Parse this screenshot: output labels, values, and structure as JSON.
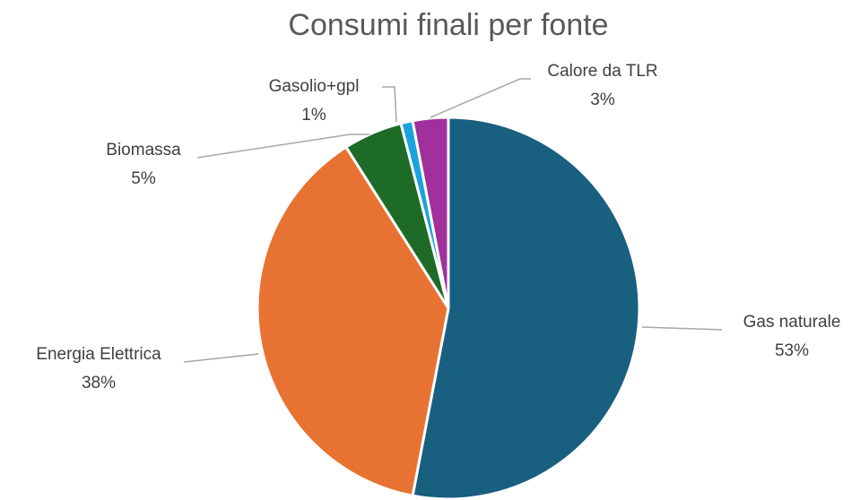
{
  "chart_data": {
    "type": "pie",
    "title": "Consumi finali per fonte",
    "categories": [
      "Gas naturale",
      "Energia Elettrica",
      "Biomassa",
      "Gasolio+gpl",
      "Calore da TLR"
    ],
    "values": [
      53,
      38,
      5,
      1,
      3
    ],
    "value_labels": [
      "53%",
      "38%",
      "5%",
      "1%",
      "3%"
    ],
    "colors": [
      "#185f80",
      "#e87232",
      "#1e6b28",
      "#1aa3dc",
      "#a0319c"
    ]
  }
}
